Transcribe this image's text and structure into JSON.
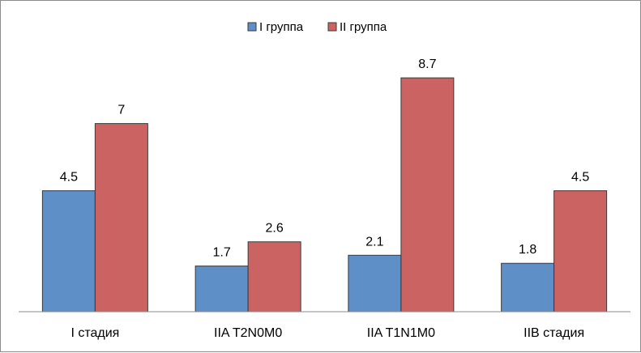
{
  "chart_data": {
    "type": "bar",
    "title": "",
    "xlabel": "",
    "ylabel": "",
    "ylim": [
      0,
      10
    ],
    "grid": false,
    "legend_position": "top",
    "categories": [
      "I стадия",
      "IIA T2N0M0",
      "IIA T1N1M0",
      "IIB стадия"
    ],
    "series": [
      {
        "name": "I группа",
        "values": [
          4.5,
          1.7,
          2.1,
          1.8
        ],
        "color": "#5f8fc7"
      },
      {
        "name": "II группа",
        "values": [
          7,
          2.6,
          8.7,
          4.5
        ],
        "color": "#cb6363"
      }
    ]
  }
}
